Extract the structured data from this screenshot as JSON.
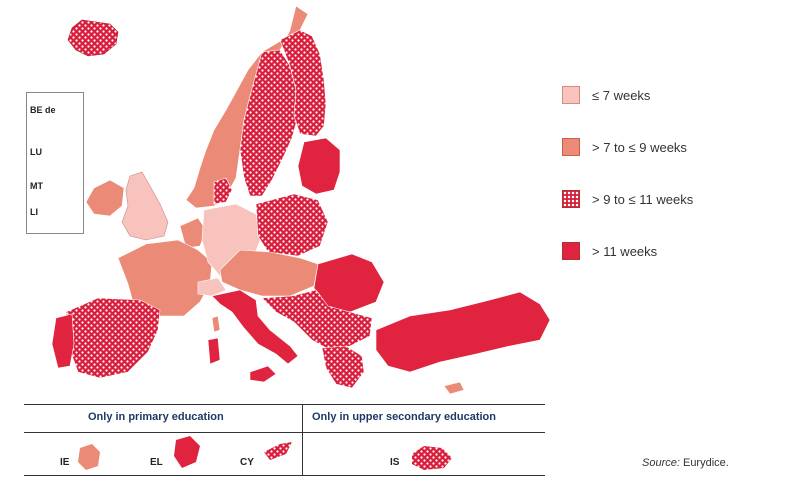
{
  "colors": {
    "le7": "#f8c3bd",
    "gt7_le9": "#ec8a78",
    "gt9_le11": "#d81e3c",
    "gt11": "#e0233e",
    "line": "#333333",
    "heading": "#1f3864"
  },
  "insets": [
    {
      "code": "BE de",
      "category": "gt7_le9"
    },
    {
      "code": "LU",
      "category": "gt7_le9"
    },
    {
      "code": "MT",
      "category": "gt11"
    },
    {
      "code": "LI",
      "category": "le7"
    }
  ],
  "legend": [
    {
      "id": "le7",
      "label": "≤ 7 weeks"
    },
    {
      "id": "gt7_le9",
      "label": "> 7 to ≤ 9 weeks"
    },
    {
      "id": "gt9_le11",
      "label": "> 9 to ≤ 11 weeks"
    },
    {
      "id": "gt11",
      "label": "> 11 weeks"
    }
  ],
  "bottom_table": {
    "primary_heading": "Only in primary education",
    "upper_heading": "Only in upper secondary education",
    "primary_countries": [
      {
        "code": "IE",
        "category": "gt7_le9"
      },
      {
        "code": "EL",
        "category": "gt11"
      },
      {
        "code": "CY",
        "category": "gt9_le11"
      }
    ],
    "upper_countries": [
      {
        "code": "IS",
        "category": "gt9_le11"
      }
    ]
  },
  "source": {
    "label": "Source:",
    "value": " Eurydice."
  }
}
